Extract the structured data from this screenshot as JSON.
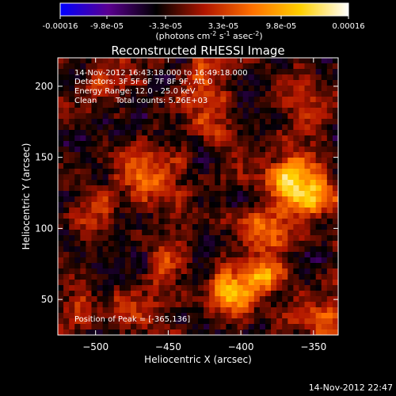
{
  "colorbar": {
    "tick_labels": [
      "-0.00016",
      "-9.8e-05",
      "-3.3e-05",
      "3.3e-05",
      "9.8e-05",
      "0.00016"
    ],
    "unit_label": {
      "part1": "(photons cm",
      "sup1": "-2",
      "part2": " s",
      "sup2": "-1",
      "part3": " asec",
      "sup3": "-2",
      "part4": ")"
    },
    "colors": {
      "low": "#0000ff",
      "mid": "#000000",
      "high": "#ffffff",
      "stops": [
        "#0000ff",
        "#5a0090",
        "#000000",
        "#b01500",
        "#ff7000",
        "#ffd000",
        "#ffffff"
      ]
    }
  },
  "annotations": {
    "time_range": "14-Nov-2012 16:43:18.000 to 16:49:18.000",
    "detectors": "Detectors: 3F 5F 6F 7F 8F 9F, Att 0",
    "energy_range": "Energy Range: 12.0 - 25.0 keV",
    "clean_label": "Clean",
    "total_counts": "Total counts: 5.26E+03",
    "peak_position": "Position of Peak = [-365,136]"
  },
  "footer": {
    "timestamp": "14-Nov-2012 22:47"
  },
  "chart_data": {
    "type": "heatmap",
    "title": "Reconstructed RHESSI Image",
    "xlabel": "Heliocentric X (arcsec)",
    "ylabel": "Heliocentric Y (arcsec)",
    "xlim": [
      -526,
      -333
    ],
    "ylim": [
      25,
      220
    ],
    "x_ticks": [
      -500,
      -450,
      -400,
      -350
    ],
    "y_ticks": [
      50,
      100,
      150,
      200
    ],
    "x_tick_labels": [
      "−500",
      "−450",
      "−400",
      "−350"
    ],
    "y_tick_labels": [
      "50",
      "100",
      "150",
      "200"
    ],
    "value_range": [
      -0.00016,
      0.00016
    ],
    "peak": [
      -365,
      136
    ],
    "sources": [
      {
        "x": -365,
        "y": 136,
        "strength": 0.92
      },
      {
        "x": -405,
        "y": 55,
        "strength": 0.72
      },
      {
        "x": -380,
        "y": 70,
        "strength": 0.62
      },
      {
        "x": -350,
        "y": 120,
        "strength": 0.55
      },
      {
        "x": -390,
        "y": 100,
        "strength": 0.48
      },
      {
        "x": -470,
        "y": 150,
        "strength": 0.42
      },
      {
        "x": -455,
        "y": 130,
        "strength": 0.38
      },
      {
        "x": -500,
        "y": 195,
        "strength": 0.32
      },
      {
        "x": -495,
        "y": 110,
        "strength": 0.35
      },
      {
        "x": -425,
        "y": 205,
        "strength": 0.33
      },
      {
        "x": -420,
        "y": 175,
        "strength": 0.36
      },
      {
        "x": -445,
        "y": 80,
        "strength": 0.34
      },
      {
        "x": -470,
        "y": 45,
        "strength": 0.3
      },
      {
        "x": -510,
        "y": 40,
        "strength": 0.28
      },
      {
        "x": -345,
        "y": 185,
        "strength": 0.3
      },
      {
        "x": -340,
        "y": 40,
        "strength": 0.45
      }
    ]
  }
}
